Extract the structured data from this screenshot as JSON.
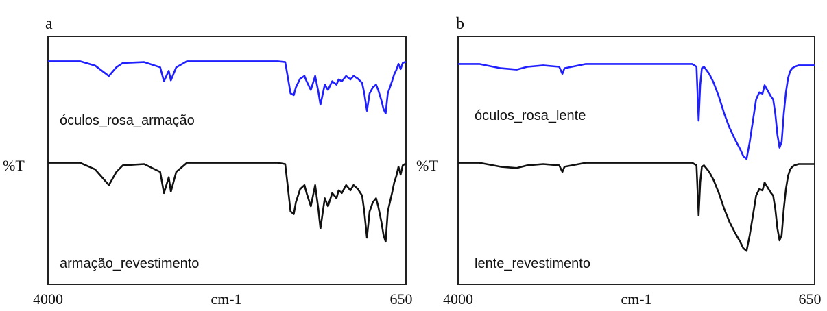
{
  "chart_data": [
    {
      "type": "line",
      "panel_label": "a",
      "ylabel": "%T",
      "xlabel": "cm-1",
      "xlim": [
        4000,
        650
      ],
      "x_ticks": [
        "4000",
        "cm-1",
        "650"
      ],
      "grid": false,
      "series": [
        {
          "name": "óculos_rosa_armação",
          "color": "#1f1fff",
          "points": [
            [
              4000,
              0.95
            ],
            [
              3700,
              0.95
            ],
            [
              3560,
              0.9
            ],
            [
              3430,
              0.78
            ],
            [
              3360,
              0.88
            ],
            [
              3300,
              0.93
            ],
            [
              3100,
              0.94
            ],
            [
              2950,
              0.88
            ],
            [
              2915,
              0.72
            ],
            [
              2870,
              0.84
            ],
            [
              2850,
              0.73
            ],
            [
              2800,
              0.88
            ],
            [
              2700,
              0.95
            ],
            [
              2000,
              0.95
            ],
            [
              1850,
              0.95
            ],
            [
              1780,
              0.94
            ],
            [
              1760,
              0.8
            ],
            [
              1730,
              0.58
            ],
            [
              1700,
              0.56
            ],
            [
              1680,
              0.65
            ],
            [
              1640,
              0.75
            ],
            [
              1600,
              0.78
            ],
            [
              1580,
              0.72
            ],
            [
              1540,
              0.62
            ],
            [
              1500,
              0.78
            ],
            [
              1470,
              0.6
            ],
            [
              1450,
              0.45
            ],
            [
              1410,
              0.68
            ],
            [
              1380,
              0.62
            ],
            [
              1340,
              0.72
            ],
            [
              1300,
              0.68
            ],
            [
              1280,
              0.74
            ],
            [
              1250,
              0.72
            ],
            [
              1210,
              0.78
            ],
            [
              1170,
              0.74
            ],
            [
              1140,
              0.78
            ],
            [
              1100,
              0.75
            ],
            [
              1060,
              0.7
            ],
            [
              1040,
              0.58
            ],
            [
              1015,
              0.38
            ],
            [
              990,
              0.58
            ],
            [
              960,
              0.65
            ],
            [
              930,
              0.68
            ],
            [
              910,
              0.62
            ],
            [
              880,
              0.5
            ],
            [
              860,
              0.4
            ],
            [
              840,
              0.35
            ],
            [
              820,
              0.58
            ],
            [
              800,
              0.65
            ],
            [
              780,
              0.72
            ],
            [
              760,
              0.8
            ],
            [
              740,
              0.85
            ],
            [
              720,
              0.92
            ],
            [
              700,
              0.86
            ],
            [
              680,
              0.93
            ],
            [
              660,
              0.94
            ],
            [
              650,
              0.94
            ]
          ]
        },
        {
          "name": "armação_revestimento",
          "color": "#111111",
          "points": [
            [
              4000,
              0.95
            ],
            [
              3700,
              0.95
            ],
            [
              3560,
              0.9
            ],
            [
              3430,
              0.78
            ],
            [
              3360,
              0.88
            ],
            [
              3300,
              0.93
            ],
            [
              3100,
              0.94
            ],
            [
              2950,
              0.88
            ],
            [
              2915,
              0.72
            ],
            [
              2870,
              0.84
            ],
            [
              2850,
              0.73
            ],
            [
              2800,
              0.88
            ],
            [
              2700,
              0.95
            ],
            [
              2000,
              0.95
            ],
            [
              1850,
              0.95
            ],
            [
              1780,
              0.94
            ],
            [
              1760,
              0.8
            ],
            [
              1730,
              0.58
            ],
            [
              1700,
              0.56
            ],
            [
              1680,
              0.65
            ],
            [
              1640,
              0.75
            ],
            [
              1600,
              0.78
            ],
            [
              1580,
              0.72
            ],
            [
              1540,
              0.62
            ],
            [
              1500,
              0.78
            ],
            [
              1470,
              0.6
            ],
            [
              1450,
              0.45
            ],
            [
              1410,
              0.68
            ],
            [
              1380,
              0.62
            ],
            [
              1340,
              0.72
            ],
            [
              1300,
              0.68
            ],
            [
              1280,
              0.74
            ],
            [
              1250,
              0.72
            ],
            [
              1210,
              0.78
            ],
            [
              1170,
              0.74
            ],
            [
              1140,
              0.78
            ],
            [
              1100,
              0.75
            ],
            [
              1060,
              0.7
            ],
            [
              1040,
              0.58
            ],
            [
              1015,
              0.38
            ],
            [
              990,
              0.58
            ],
            [
              960,
              0.65
            ],
            [
              930,
              0.68
            ],
            [
              910,
              0.62
            ],
            [
              880,
              0.5
            ],
            [
              860,
              0.4
            ],
            [
              840,
              0.35
            ],
            [
              820,
              0.58
            ],
            [
              800,
              0.65
            ],
            [
              780,
              0.72
            ],
            [
              760,
              0.8
            ],
            [
              740,
              0.85
            ],
            [
              720,
              0.92
            ],
            [
              700,
              0.86
            ],
            [
              680,
              0.93
            ],
            [
              660,
              0.94
            ],
            [
              650,
              0.94
            ]
          ]
        }
      ]
    },
    {
      "type": "line",
      "panel_label": "b",
      "ylabel": "%T",
      "xlabel": "cm-1",
      "xlim": [
        4000,
        650
      ],
      "x_ticks": [
        "4000",
        "cm-1",
        "650"
      ],
      "grid": false,
      "series": [
        {
          "name": "óculos_rosa_lente",
          "color": "#1f1fff",
          "points": [
            [
              4000,
              0.95
            ],
            [
              3800,
              0.95
            ],
            [
              3600,
              0.92
            ],
            [
              3450,
              0.91
            ],
            [
              3350,
              0.93
            ],
            [
              3200,
              0.94
            ],
            [
              3050,
              0.93
            ],
            [
              3020,
              0.88
            ],
            [
              3000,
              0.92
            ],
            [
              2800,
              0.95
            ],
            [
              2000,
              0.95
            ],
            [
              1800,
              0.95
            ],
            [
              1760,
              0.93
            ],
            [
              1740,
              0.55
            ],
            [
              1725,
              0.8
            ],
            [
              1710,
              0.92
            ],
            [
              1690,
              0.93
            ],
            [
              1640,
              0.88
            ],
            [
              1600,
              0.82
            ],
            [
              1550,
              0.72
            ],
            [
              1500,
              0.6
            ],
            [
              1450,
              0.5
            ],
            [
              1400,
              0.42
            ],
            [
              1350,
              0.35
            ],
            [
              1320,
              0.3
            ],
            [
              1290,
              0.28
            ],
            [
              1260,
              0.4
            ],
            [
              1230,
              0.55
            ],
            [
              1200,
              0.7
            ],
            [
              1170,
              0.75
            ],
            [
              1140,
              0.74
            ],
            [
              1120,
              0.8
            ],
            [
              1090,
              0.76
            ],
            [
              1060,
              0.72
            ],
            [
              1040,
              0.7
            ],
            [
              1020,
              0.6
            ],
            [
              1000,
              0.45
            ],
            [
              980,
              0.36
            ],
            [
              960,
              0.4
            ],
            [
              940,
              0.6
            ],
            [
              920,
              0.75
            ],
            [
              900,
              0.85
            ],
            [
              880,
              0.9
            ],
            [
              860,
              0.92
            ],
            [
              840,
              0.93
            ],
            [
              800,
              0.94
            ],
            [
              750,
              0.94
            ],
            [
              700,
              0.94
            ],
            [
              650,
              0.94
            ]
          ]
        },
        {
          "name": "lente_revestimento",
          "color": "#111111",
          "points": [
            [
              4000,
              0.95
            ],
            [
              3800,
              0.95
            ],
            [
              3600,
              0.92
            ],
            [
              3450,
              0.91
            ],
            [
              3350,
              0.93
            ],
            [
              3200,
              0.94
            ],
            [
              3050,
              0.93
            ],
            [
              3020,
              0.88
            ],
            [
              3000,
              0.92
            ],
            [
              2800,
              0.95
            ],
            [
              2000,
              0.95
            ],
            [
              1800,
              0.95
            ],
            [
              1760,
              0.93
            ],
            [
              1740,
              0.55
            ],
            [
              1725,
              0.8
            ],
            [
              1710,
              0.92
            ],
            [
              1690,
              0.93
            ],
            [
              1640,
              0.88
            ],
            [
              1600,
              0.82
            ],
            [
              1550,
              0.72
            ],
            [
              1500,
              0.6
            ],
            [
              1450,
              0.5
            ],
            [
              1400,
              0.42
            ],
            [
              1350,
              0.35
            ],
            [
              1320,
              0.3
            ],
            [
              1290,
              0.28
            ],
            [
              1260,
              0.4
            ],
            [
              1230,
              0.55
            ],
            [
              1200,
              0.7
            ],
            [
              1170,
              0.75
            ],
            [
              1140,
              0.74
            ],
            [
              1120,
              0.8
            ],
            [
              1090,
              0.76
            ],
            [
              1060,
              0.72
            ],
            [
              1040,
              0.7
            ],
            [
              1020,
              0.6
            ],
            [
              1000,
              0.45
            ],
            [
              980,
              0.36
            ],
            [
              960,
              0.4
            ],
            [
              940,
              0.6
            ],
            [
              920,
              0.75
            ],
            [
              900,
              0.85
            ],
            [
              880,
              0.9
            ],
            [
              860,
              0.92
            ],
            [
              840,
              0.93
            ],
            [
              800,
              0.94
            ],
            [
              750,
              0.94
            ],
            [
              700,
              0.94
            ],
            [
              650,
              0.94
            ]
          ]
        }
      ]
    }
  ]
}
